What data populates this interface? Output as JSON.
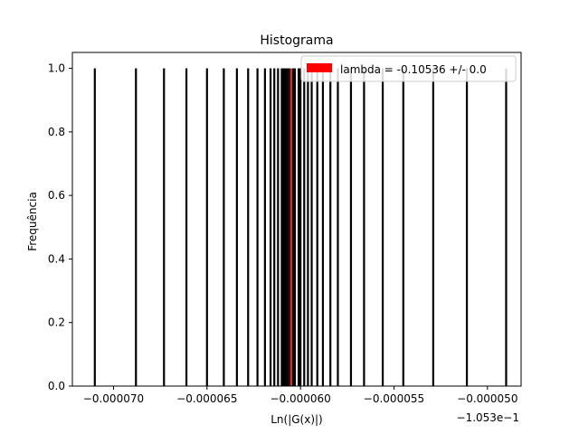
{
  "chart_data": {
    "type": "histogram",
    "title": "Histograma",
    "xlabel": "Ln(|G(x)|)",
    "ylabel": "Frequência",
    "x_offset_label": "−1.053e−1",
    "xlim": [
      -7.22e-05,
      -4.82e-05
    ],
    "ylim": [
      0.0,
      1.05
    ],
    "x_ticks": [
      -7e-05,
      -6.5e-05,
      -6e-05,
      -5.5e-05,
      -5e-05
    ],
    "x_tick_labels": [
      "−0.000070",
      "−0.000065",
      "−0.000060",
      "−0.000055",
      "−0.000050"
    ],
    "y_ticks": [
      0.0,
      0.2,
      0.4,
      0.6,
      0.8,
      1.0
    ],
    "y_tick_labels": [
      "0.0",
      "0.2",
      "0.4",
      "0.6",
      "0.8",
      "1.0"
    ],
    "bar_color": "#000000",
    "bar_positions": [
      -7.1e-05,
      -6.88e-05,
      -6.73e-05,
      -6.61e-05,
      -6.5e-05,
      -6.41e-05,
      -6.34e-05,
      -6.28e-05,
      -6.23e-05,
      -6.19e-05,
      -6.16e-05,
      -6.14e-05,
      -6.12e-05,
      -6.1e-05,
      -6.09e-05,
      -6.08e-05,
      -6.07e-05,
      -6.06e-05,
      -6.04e-05,
      -6.03e-05,
      -6.01e-05,
      -6e-05,
      -5.98e-05,
      -5.96e-05,
      -5.94e-05,
      -5.91e-05,
      -5.88e-05,
      -5.84e-05,
      -5.8e-05,
      -5.73e-05,
      -5.66e-05,
      -5.56e-05,
      -5.45e-05,
      -5.29e-05,
      -5.11e-05,
      -4.9e-05
    ],
    "bar_values": [
      1,
      1,
      1,
      1,
      1,
      1,
      1,
      1,
      1,
      1,
      1,
      1,
      1,
      1,
      1,
      1,
      1,
      1,
      1,
      1,
      1,
      1,
      1,
      1,
      1,
      1,
      1,
      1,
      1,
      1,
      1,
      1,
      1,
      1,
      1,
      1
    ],
    "reference_line": {
      "x": -6.05e-05,
      "color": "#ff0000"
    },
    "legend": {
      "placement": "top-right",
      "entries": [
        {
          "label": "lambda = -0.10536 +/- 0.0",
          "color": "#ff0000"
        }
      ]
    }
  }
}
